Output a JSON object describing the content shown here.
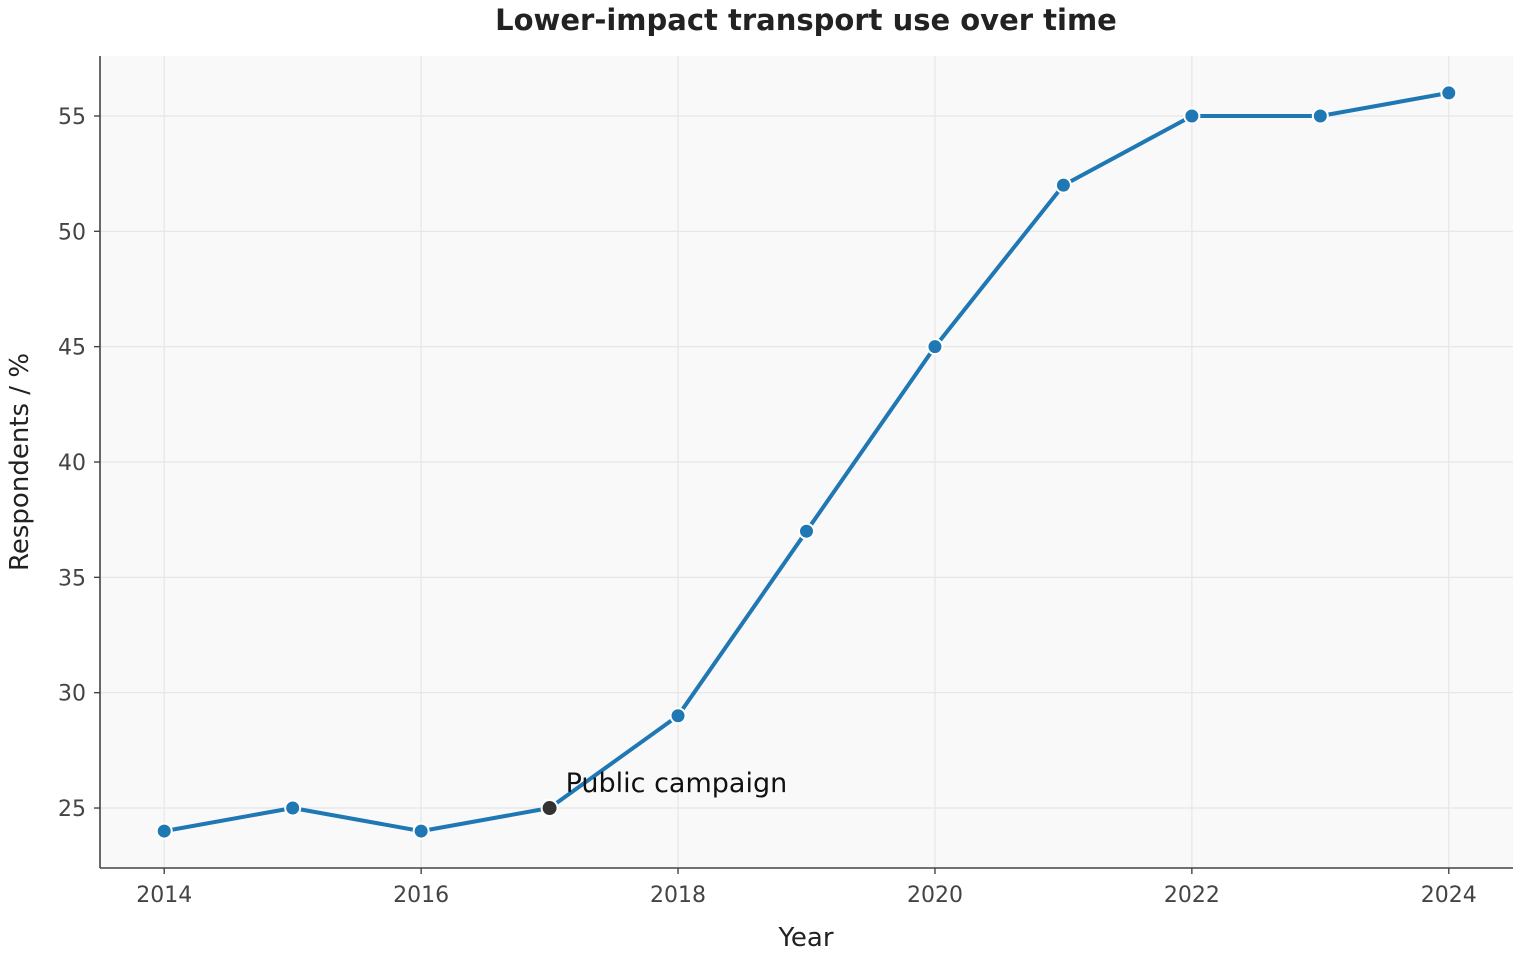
{
  "chart_data": {
    "type": "line",
    "title": "Lower-impact transport use over time",
    "xlabel": "Year",
    "ylabel": "Respondents / %",
    "x": [
      2014,
      2015,
      2016,
      2017,
      2018,
      2019,
      2020,
      2021,
      2022,
      2023,
      2024
    ],
    "series": [
      {
        "name": "",
        "values": [
          24,
          25,
          24,
          25,
          29,
          37,
          45,
          52,
          55,
          55,
          56
        ],
        "color": "#1f77b4"
      }
    ],
    "xticks": [
      "2014",
      "2016",
      "2018",
      "2020",
      "2022",
      "2024"
    ],
    "yticks": [
      "25",
      "30",
      "35",
      "40",
      "45",
      "50",
      "55"
    ],
    "xlim": [
      2013.5,
      2024.5
    ],
    "ylim": [
      22.4,
      57.6
    ],
    "grid": true,
    "annotations": [
      {
        "text": "Public campaign",
        "x": 2017,
        "y": 25,
        "marker_color": "#333333"
      }
    ],
    "colors": {
      "plot_background": "#f9f9fa",
      "line": "#1f77b4"
    }
  }
}
